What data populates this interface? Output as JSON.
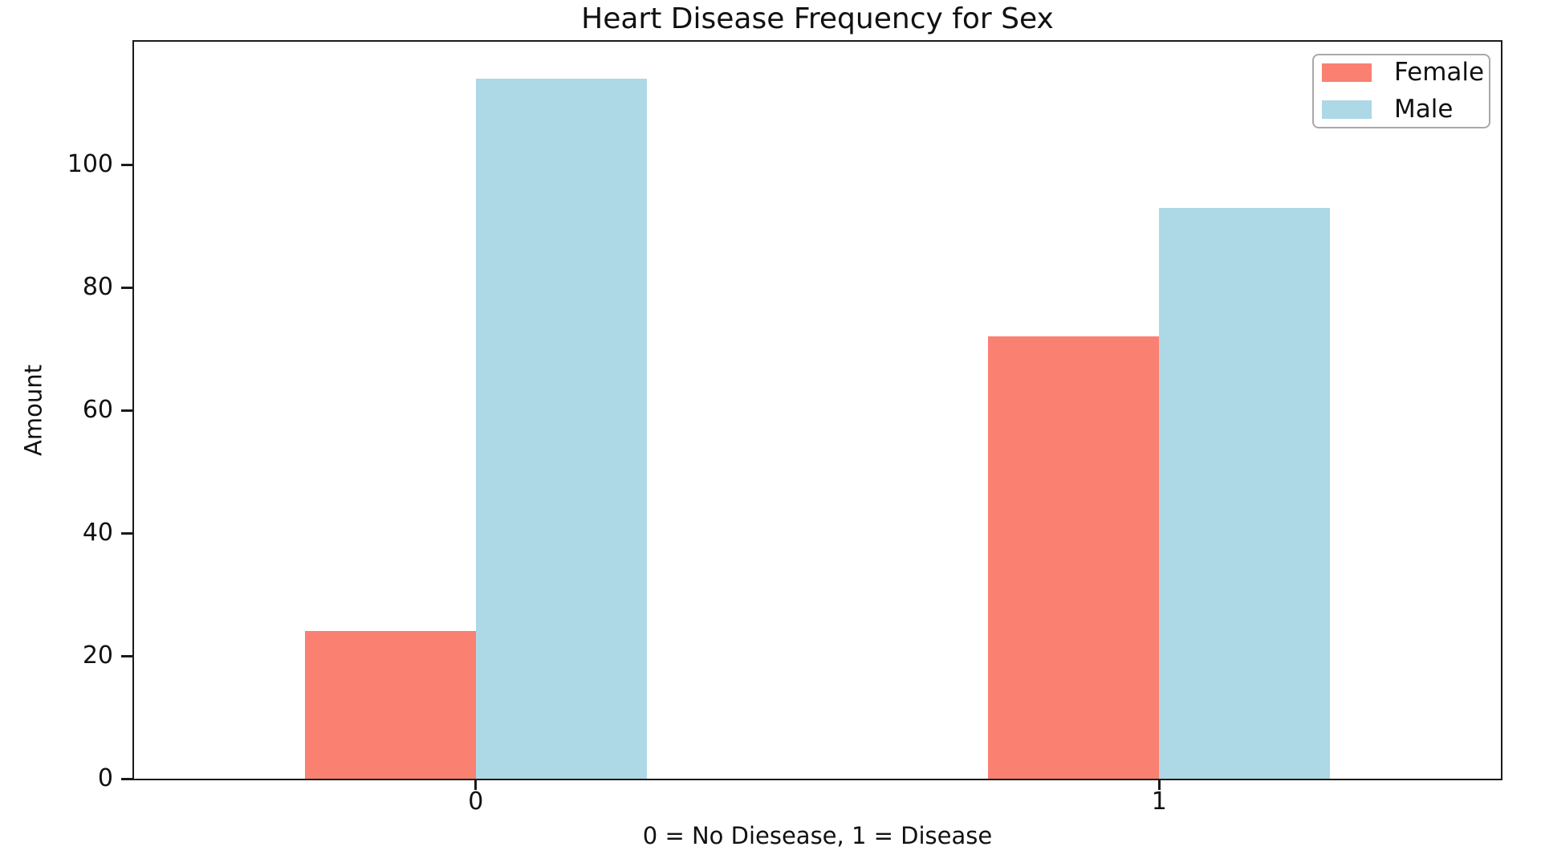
{
  "figure": {
    "background": "#ffffff",
    "text_color": "#111111",
    "spine_color": "#1a1a1a"
  },
  "chart_data": {
    "type": "bar",
    "title": "Heart Disease Frequency for Sex",
    "xlabel": "0 = No Diesease, 1 = Disease",
    "ylabel": "Amount",
    "categories": [
      "0",
      "1"
    ],
    "series": [
      {
        "name": "Female",
        "color": "#FA8072",
        "values": [
          24,
          72
        ]
      },
      {
        "name": "Male",
        "color": "#ADD8E6",
        "values": [
          114,
          93
        ]
      }
    ],
    "yticks": [
      0,
      20,
      40,
      60,
      80,
      100
    ],
    "ylim": [
      0,
      120
    ],
    "grid": false,
    "legend_position": "upper right"
  }
}
